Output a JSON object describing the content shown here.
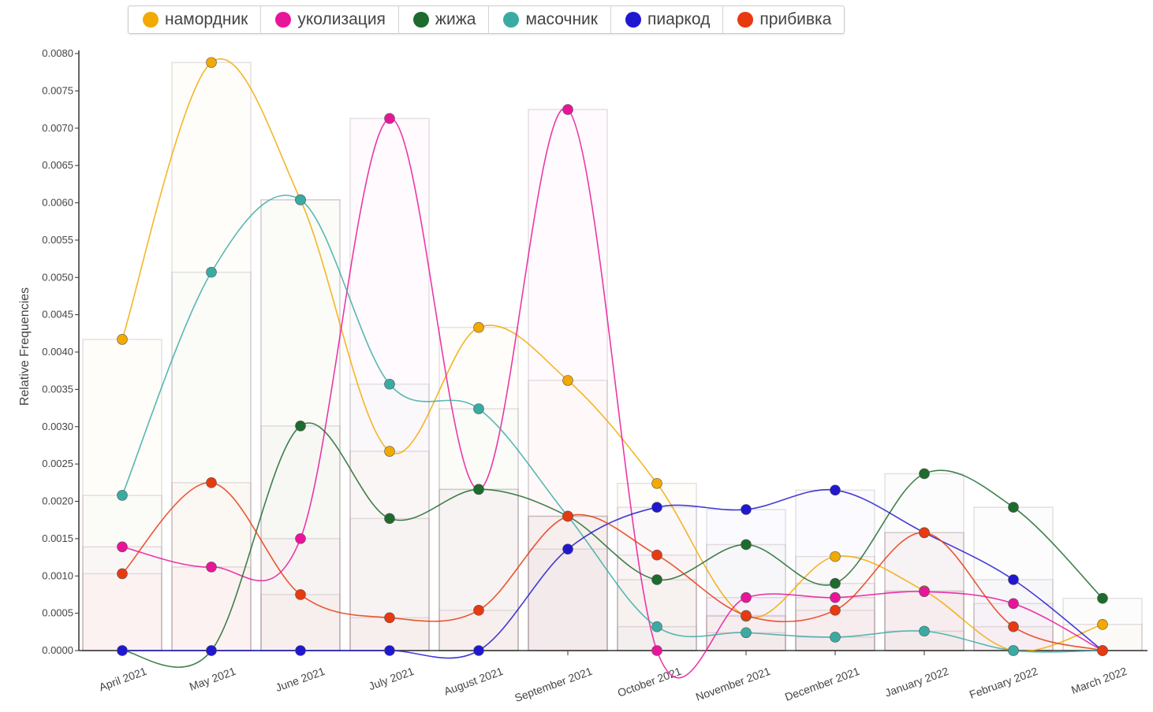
{
  "chart_data": {
    "type": "line",
    "title": "",
    "xlabel": "",
    "ylabel": "Relative Frequencies",
    "ylim": [
      0,
      0.008
    ],
    "yticks": [
      "0.0000",
      "0.0005",
      "0.0010",
      "0.0015",
      "0.0020",
      "0.0025",
      "0.0030",
      "0.0035",
      "0.0040",
      "0.0045",
      "0.0050",
      "0.0055",
      "0.0060",
      "0.0065",
      "0.0070",
      "0.0075",
      "0.0080"
    ],
    "categories": [
      "April 2021",
      "May 2021",
      "June 2021",
      "July 2021",
      "August 2021",
      "September 2021",
      "October 2021",
      "November 2021",
      "December 2021",
      "January 2022",
      "February 2022",
      "March 2022"
    ],
    "legend_position": "top",
    "series": [
      {
        "name": "намордник",
        "color": "#f2a900",
        "values": [
          0.00417,
          0.00788,
          0.00604,
          0.00267,
          0.00433,
          0.00362,
          0.00224,
          0.00046,
          0.00126,
          0.0008,
          0.0,
          0.00035
        ]
      },
      {
        "name": "уколизация",
        "color": "#e8159b",
        "values": [
          0.00139,
          0.00112,
          0.0015,
          0.00713,
          0.00216,
          0.00725,
          0.0,
          0.00071,
          0.00071,
          0.00079,
          0.00063,
          0.0
        ]
      },
      {
        "name": "жижа",
        "color": "#1e6b2e",
        "values": [
          0.0,
          0.0,
          0.00301,
          0.00177,
          0.00216,
          0.0018,
          0.00095,
          0.00142,
          0.0009,
          0.00237,
          0.00192,
          0.0007
        ]
      },
      {
        "name": "масочник",
        "color": "#3aaba3",
        "values": [
          0.00208,
          0.00507,
          0.00604,
          0.00357,
          0.00324,
          0.0018,
          0.00032,
          0.00024,
          0.00018,
          0.00026,
          0.0,
          0.0
        ]
      },
      {
        "name": "пиаркод",
        "color": "#2018d0",
        "values": [
          0.0,
          0.0,
          0.0,
          0.0,
          0.0,
          0.00136,
          0.00192,
          0.00189,
          0.00215,
          0.00158,
          0.00095,
          0.0
        ]
      },
      {
        "name": "прибивка",
        "color": "#e83a10",
        "values": [
          0.00103,
          0.00225,
          0.00075,
          0.00044,
          0.00054,
          0.0018,
          0.00128,
          0.00047,
          0.00054,
          0.00158,
          0.00032,
          0.0
        ]
      }
    ]
  }
}
